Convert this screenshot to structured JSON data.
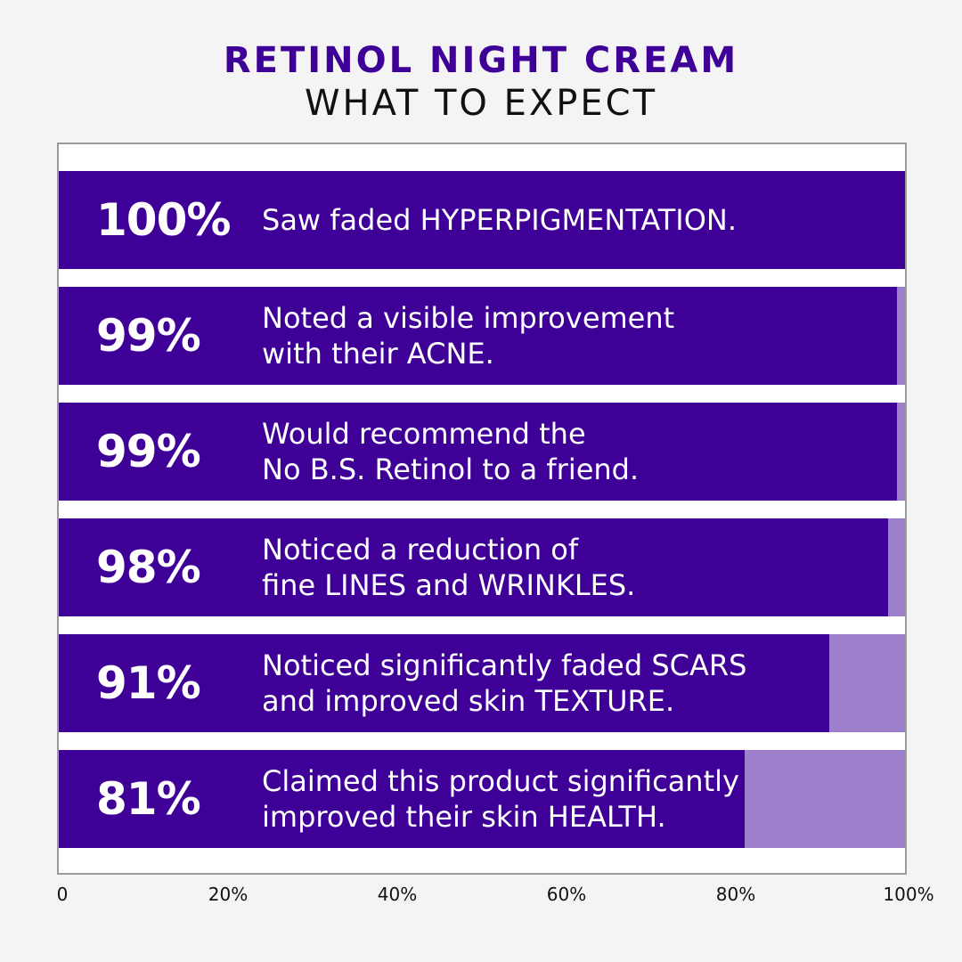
{
  "colors": {
    "bar": "#3f0097",
    "remainder": "#9d80cc",
    "title": "#3f0097",
    "background": "#f4f4f4"
  },
  "chart_data": {
    "type": "bar",
    "orientation": "horizontal",
    "title": "RETINOL NIGHT CREAM",
    "subtitle": "WHAT TO EXPECT",
    "xlim": [
      0,
      100
    ],
    "x_ticks": [
      "0",
      "20%",
      "40%",
      "60%",
      "80%",
      "100%"
    ],
    "bars": [
      {
        "value": 100,
        "label": "100%",
        "text": [
          "Saw faded HYPERPIGMENTATION."
        ]
      },
      {
        "value": 99,
        "label": "99%",
        "text": [
          "Noted a visible improvement",
          "with their ACNE."
        ]
      },
      {
        "value": 99,
        "label": "99%",
        "text": [
          "Would recommend the",
          "No B.S. Retinol to a friend."
        ]
      },
      {
        "value": 98,
        "label": "98%",
        "text": [
          "Noticed a reduction of",
          "fine LINES and WRINKLES."
        ]
      },
      {
        "value": 91,
        "label": "91%",
        "text": [
          "Noticed significantly faded SCARS",
          "and improved skin TEXTURE."
        ]
      },
      {
        "value": 81,
        "label": "81%",
        "text": [
          "Claimed this product significantly",
          "improved their skin HEALTH."
        ]
      }
    ]
  }
}
